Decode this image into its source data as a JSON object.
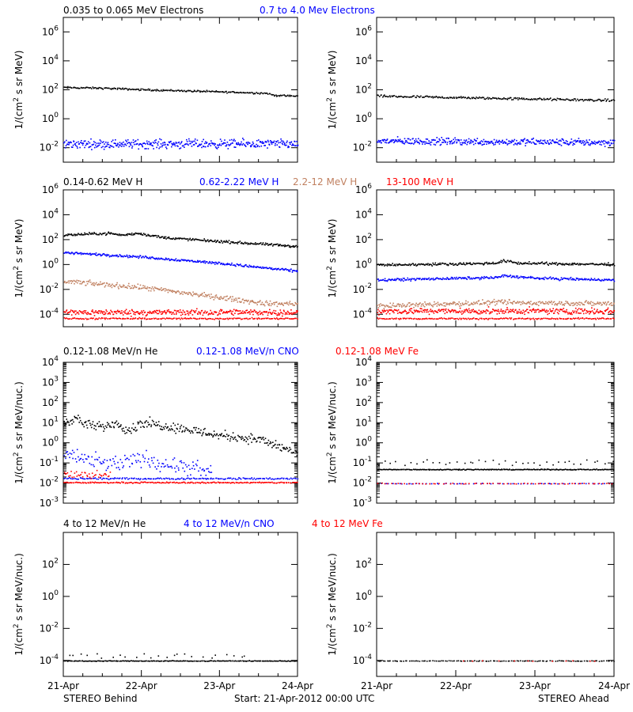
{
  "footer": {
    "left": "STEREO Behind",
    "center": "Start: 21-Apr-2012 00:00 UTC",
    "right": "STEREO Ahead"
  },
  "x_ticks": [
    "21-Apr",
    "22-Apr",
    "23-Apr",
    "24-Apr"
  ],
  "colors": {
    "black": "#000000",
    "blue": "#0000ff",
    "tan": "#c08060",
    "red": "#ff0000"
  },
  "rows": [
    {
      "legend": [
        {
          "label": "0.035 to 0.065 MeV Electrons",
          "color": "#000000"
        },
        {
          "label": "0.7 to 4.0 Mev Electrons",
          "color": "#0000ff"
        }
      ],
      "ylabel_base": "1/(cm",
      "ylabel_sup": "2",
      "ylabel_rest": " s sr MeV)",
      "ticks": [
        {
          "base": "10",
          "exp": "6"
        },
        {
          "base": "10",
          "exp": "4"
        },
        {
          "base": "10",
          "exp": "2"
        },
        {
          "base": "10",
          "exp": "0"
        },
        {
          "base": "10",
          "exp": "-2"
        }
      ]
    },
    {
      "legend": [
        {
          "label": "0.14-0.62 MeV H",
          "color": "#000000"
        },
        {
          "label": "0.62-2.22 MeV H",
          "color": "#0000ff"
        },
        {
          "label": "2.2-12 MeV H",
          "color": "#c08060"
        },
        {
          "label": "13-100 MeV H",
          "color": "#ff0000"
        }
      ],
      "ylabel_base": "1/(cm",
      "ylabel_sup": "2",
      "ylabel_rest": " s sr MeV)",
      "ticks": [
        {
          "base": "10",
          "exp": "6"
        },
        {
          "base": "10",
          "exp": "4"
        },
        {
          "base": "10",
          "exp": "2"
        },
        {
          "base": "10",
          "exp": "0"
        },
        {
          "base": "10",
          "exp": "-2"
        },
        {
          "base": "10",
          "exp": "-4"
        }
      ]
    },
    {
      "legend": [
        {
          "label": "0.12-1.08 MeV/n He",
          "color": "#000000"
        },
        {
          "label": "0.12-1.08 MeV/n CNO",
          "color": "#0000ff"
        },
        {
          "label": "0.12-1.08 MeV Fe",
          "color": "#ff0000"
        }
      ],
      "ylabel_base": "1/(cm",
      "ylabel_sup": "2",
      "ylabel_rest": " s sr MeV/nuc.)",
      "ticks": [
        {
          "base": "10",
          "exp": "4"
        },
        {
          "base": "10",
          "exp": "3"
        },
        {
          "base": "10",
          "exp": "2"
        },
        {
          "base": "10",
          "exp": "1"
        },
        {
          "base": "10",
          "exp": "0"
        },
        {
          "base": "10",
          "exp": "-1"
        },
        {
          "base": "10",
          "exp": "-2"
        },
        {
          "base": "10",
          "exp": "-3"
        }
      ]
    },
    {
      "legend": [
        {
          "label": "4 to 12 MeV/n He",
          "color": "#000000"
        },
        {
          "label": "4 to 12 MeV/n CNO",
          "color": "#0000ff"
        },
        {
          "label": "4 to 12 MeV Fe",
          "color": "#ff0000"
        }
      ],
      "ylabel_base": "1/(cm",
      "ylabel_sup": "2",
      "ylabel_rest": " s sr MeV/nuc.)",
      "ticks": [
        {
          "base": "10",
          "exp": "2"
        },
        {
          "base": "10",
          "exp": "0"
        },
        {
          "base": "10",
          "exp": "-2"
        },
        {
          "base": "10",
          "exp": "-4"
        }
      ]
    }
  ],
  "chart_data": [
    {
      "type": "scatter",
      "panel": "electrons-behind",
      "spacecraft": "STEREO Behind",
      "y_scale": "log",
      "ylim_log10": [
        -3,
        7
      ],
      "xlim_days": [
        0,
        3
      ],
      "series": [
        {
          "color": "#000000",
          "profile": [
            [
              0,
              2.2
            ],
            [
              0.5,
              2.15
            ],
            [
              1.0,
              2.05
            ],
            [
              2.0,
              1.9
            ],
            [
              2.6,
              1.8
            ],
            [
              2.7,
              1.65
            ],
            [
              3.0,
              1.6
            ]
          ],
          "noise": 0.03,
          "n": 240
        },
        {
          "color": "#0000ff",
          "profile": [
            [
              0,
              -1.7
            ],
            [
              3.0,
              -1.7
            ]
          ],
          "noise": 0.15,
          "n": 400
        }
      ]
    },
    {
      "type": "scatter",
      "panel": "electrons-ahead",
      "spacecraft": "STEREO Ahead",
      "y_scale": "log",
      "ylim_log10": [
        -3,
        7
      ],
      "xlim_days": [
        0,
        3
      ],
      "series": [
        {
          "color": "#000000",
          "profile": [
            [
              0,
              1.6
            ],
            [
              1.5,
              1.45
            ],
            [
              3.0,
              1.3
            ]
          ],
          "noise": 0.04,
          "n": 240
        },
        {
          "color": "#0000ff",
          "profile": [
            [
              0,
              -1.5
            ],
            [
              3.0,
              -1.6
            ]
          ],
          "noise": 0.12,
          "n": 400
        }
      ]
    },
    {
      "type": "scatter",
      "panel": "protons-behind",
      "spacecraft": "STEREO Behind",
      "y_scale": "log",
      "ylim_log10": [
        -5,
        6
      ],
      "xlim_days": [
        0,
        3
      ],
      "series": [
        {
          "color": "#000000",
          "profile": [
            [
              0,
              2.4
            ],
            [
              0.3,
              2.5
            ],
            [
              0.6,
              2.55
            ],
            [
              0.75,
              2.4
            ],
            [
              0.95,
              2.55
            ],
            [
              1.3,
              2.2
            ],
            [
              2.0,
              1.9
            ],
            [
              3.0,
              1.5
            ]
          ],
          "noise": 0.05,
          "n": 300
        },
        {
          "color": "#0000ff",
          "profile": [
            [
              0,
              1.0
            ],
            [
              0.6,
              0.8
            ],
            [
              1.0,
              0.65
            ],
            [
              2.0,
              0.15
            ],
            [
              3.0,
              -0.5
            ]
          ],
          "noise": 0.05,
          "n": 300
        },
        {
          "color": "#c08060",
          "profile": [
            [
              0,
              -1.3
            ],
            [
              1.0,
              -1.8
            ],
            [
              2.0,
              -2.6
            ],
            [
              2.6,
              -3.1
            ],
            [
              3.0,
              -3.1
            ]
          ],
          "noise": 0.1,
          "n": 300
        },
        {
          "color": "#ff0000",
          "profile": [
            [
              0,
              -3.8
            ],
            [
              3.0,
              -3.8
            ]
          ],
          "noise": 0.12,
          "n": 350
        },
        {
          "color": "#ff0000",
          "profile": [
            [
              0,
              -4.3
            ],
            [
              3.0,
              -4.3
            ]
          ],
          "noise": 0.03,
          "n": 200
        }
      ]
    },
    {
      "type": "scatter",
      "panel": "protons-ahead",
      "spacecraft": "STEREO Ahead",
      "y_scale": "log",
      "ylim_log10": [
        -5,
        6
      ],
      "xlim_days": [
        0,
        3
      ],
      "series": [
        {
          "color": "#000000",
          "profile": [
            [
              0,
              0.0
            ],
            [
              1.5,
              0.15
            ],
            [
              1.6,
              0.35
            ],
            [
              1.8,
              0.15
            ],
            [
              3.0,
              0.05
            ]
          ],
          "noise": 0.05,
          "n": 300
        },
        {
          "color": "#0000ff",
          "profile": [
            [
              0,
              -1.2
            ],
            [
              1.5,
              -1.0
            ],
            [
              1.6,
              -0.85
            ],
            [
              2.0,
              -1.05
            ],
            [
              3.0,
              -1.2
            ]
          ],
          "noise": 0.05,
          "n": 300
        },
        {
          "color": "#c08060",
          "profile": [
            [
              0,
              -3.3
            ],
            [
              1.5,
              -3.0
            ],
            [
              3.0,
              -3.1
            ]
          ],
          "noise": 0.1,
          "n": 300
        },
        {
          "color": "#ff0000",
          "profile": [
            [
              0,
              -3.7
            ],
            [
              3.0,
              -3.7
            ]
          ],
          "noise": 0.12,
          "n": 350
        },
        {
          "color": "#ff0000",
          "profile": [
            [
              0,
              -4.3
            ],
            [
              3.0,
              -4.3
            ]
          ],
          "noise": 0.03,
          "n": 200
        }
      ]
    },
    {
      "type": "scatter",
      "panel": "heavy-low-behind",
      "spacecraft": "STEREO Behind",
      "y_scale": "log",
      "ylim_log10": [
        -3,
        4
      ],
      "xlim_days": [
        0,
        3
      ],
      "series": [
        {
          "color": "#000000",
          "profile": [
            [
              0,
              1.05
            ],
            [
              0.15,
              1.25
            ],
            [
              0.3,
              0.9
            ],
            [
              0.5,
              0.8
            ],
            [
              0.65,
              1.05
            ],
            [
              0.85,
              0.65
            ],
            [
              1.0,
              1.05
            ],
            [
              1.5,
              0.75
            ],
            [
              2.0,
              0.4
            ],
            [
              2.5,
              0.2
            ],
            [
              3.0,
              -0.5
            ]
          ],
          "noise": 0.12,
          "n": 300
        },
        {
          "color": "#0000ff",
          "profile": [
            [
              0,
              -0.8
            ],
            [
              0.1,
              -0.5
            ],
            [
              0.3,
              -0.9
            ],
            [
              0.7,
              -1.05
            ],
            [
              1.0,
              -0.75
            ],
            [
              1.5,
              -1.2
            ],
            [
              1.9,
              -1.4
            ]
          ],
          "noise": 0.2,
          "n": 150
        },
        {
          "color": "#0000ff",
          "profile": [
            [
              0,
              -1.75
            ],
            [
              3.0,
              -1.75
            ]
          ],
          "noise": 0.02,
          "n": 180
        },
        {
          "color": "#ff0000",
          "profile": [
            [
              0,
              -1.55
            ],
            [
              0.6,
              -1.6
            ]
          ],
          "noise": 0.1,
          "n": 40
        },
        {
          "color": "#ff0000",
          "profile": [
            [
              0,
              -1.95
            ],
            [
              3.0,
              -1.95
            ]
          ],
          "noise": 0.015,
          "n": 220
        }
      ]
    },
    {
      "type": "scatter",
      "panel": "heavy-low-ahead",
      "spacecraft": "STEREO Ahead",
      "y_scale": "log",
      "ylim_log10": [
        -3,
        4
      ],
      "xlim_days": [
        0,
        3
      ],
      "series": [
        {
          "color": "#000000",
          "profile": [
            [
              0,
              -1.3
            ],
            [
              3.0,
              -1.3
            ]
          ],
          "noise": 0.01,
          "n": 260
        },
        {
          "color": "#000000",
          "profile": [
            [
              0,
              -0.95
            ],
            [
              3.0,
              -0.95
            ]
          ],
          "noise": 0.08,
          "n": 40
        },
        {
          "color": "#0000ff",
          "profile": [
            [
              0,
              -2.0
            ],
            [
              3.0,
              -2.0
            ]
          ],
          "noise": 0.01,
          "n": 70
        },
        {
          "color": "#ff0000",
          "profile": [
            [
              0,
              -2.0
            ],
            [
              3.0,
              -2.0
            ]
          ],
          "noise": 0.01,
          "n": 70
        }
      ]
    },
    {
      "type": "scatter",
      "panel": "heavy-high-behind",
      "spacecraft": "STEREO Behind",
      "y_scale": "log",
      "ylim_log10": [
        -5,
        4
      ],
      "xlim_days": [
        0,
        3
      ],
      "series": [
        {
          "color": "#000000",
          "profile": [
            [
              0,
              -4.0
            ],
            [
              3.0,
              -4.0
            ]
          ],
          "noise": 0.01,
          "n": 230
        },
        {
          "color": "#000000",
          "profile": [
            [
              0,
              -3.7
            ],
            [
              2.4,
              -3.7
            ]
          ],
          "noise": 0.08,
          "n": 25
        }
      ]
    },
    {
      "type": "scatter",
      "panel": "heavy-high-ahead",
      "spacecraft": "STEREO Ahead",
      "y_scale": "log",
      "ylim_log10": [
        -5,
        4
      ],
      "xlim_days": [
        0,
        3
      ],
      "series": [
        {
          "color": "#000000",
          "profile": [
            [
              0,
              -4.0
            ],
            [
              3.0,
              -4.0
            ]
          ],
          "noise": 0.01,
          "n": 130
        },
        {
          "color": "#ff0000",
          "profile": [
            [
              1.0,
              -4.0
            ],
            [
              2.9,
              -4.0
            ]
          ],
          "noise": 0.01,
          "n": 12
        }
      ]
    }
  ]
}
